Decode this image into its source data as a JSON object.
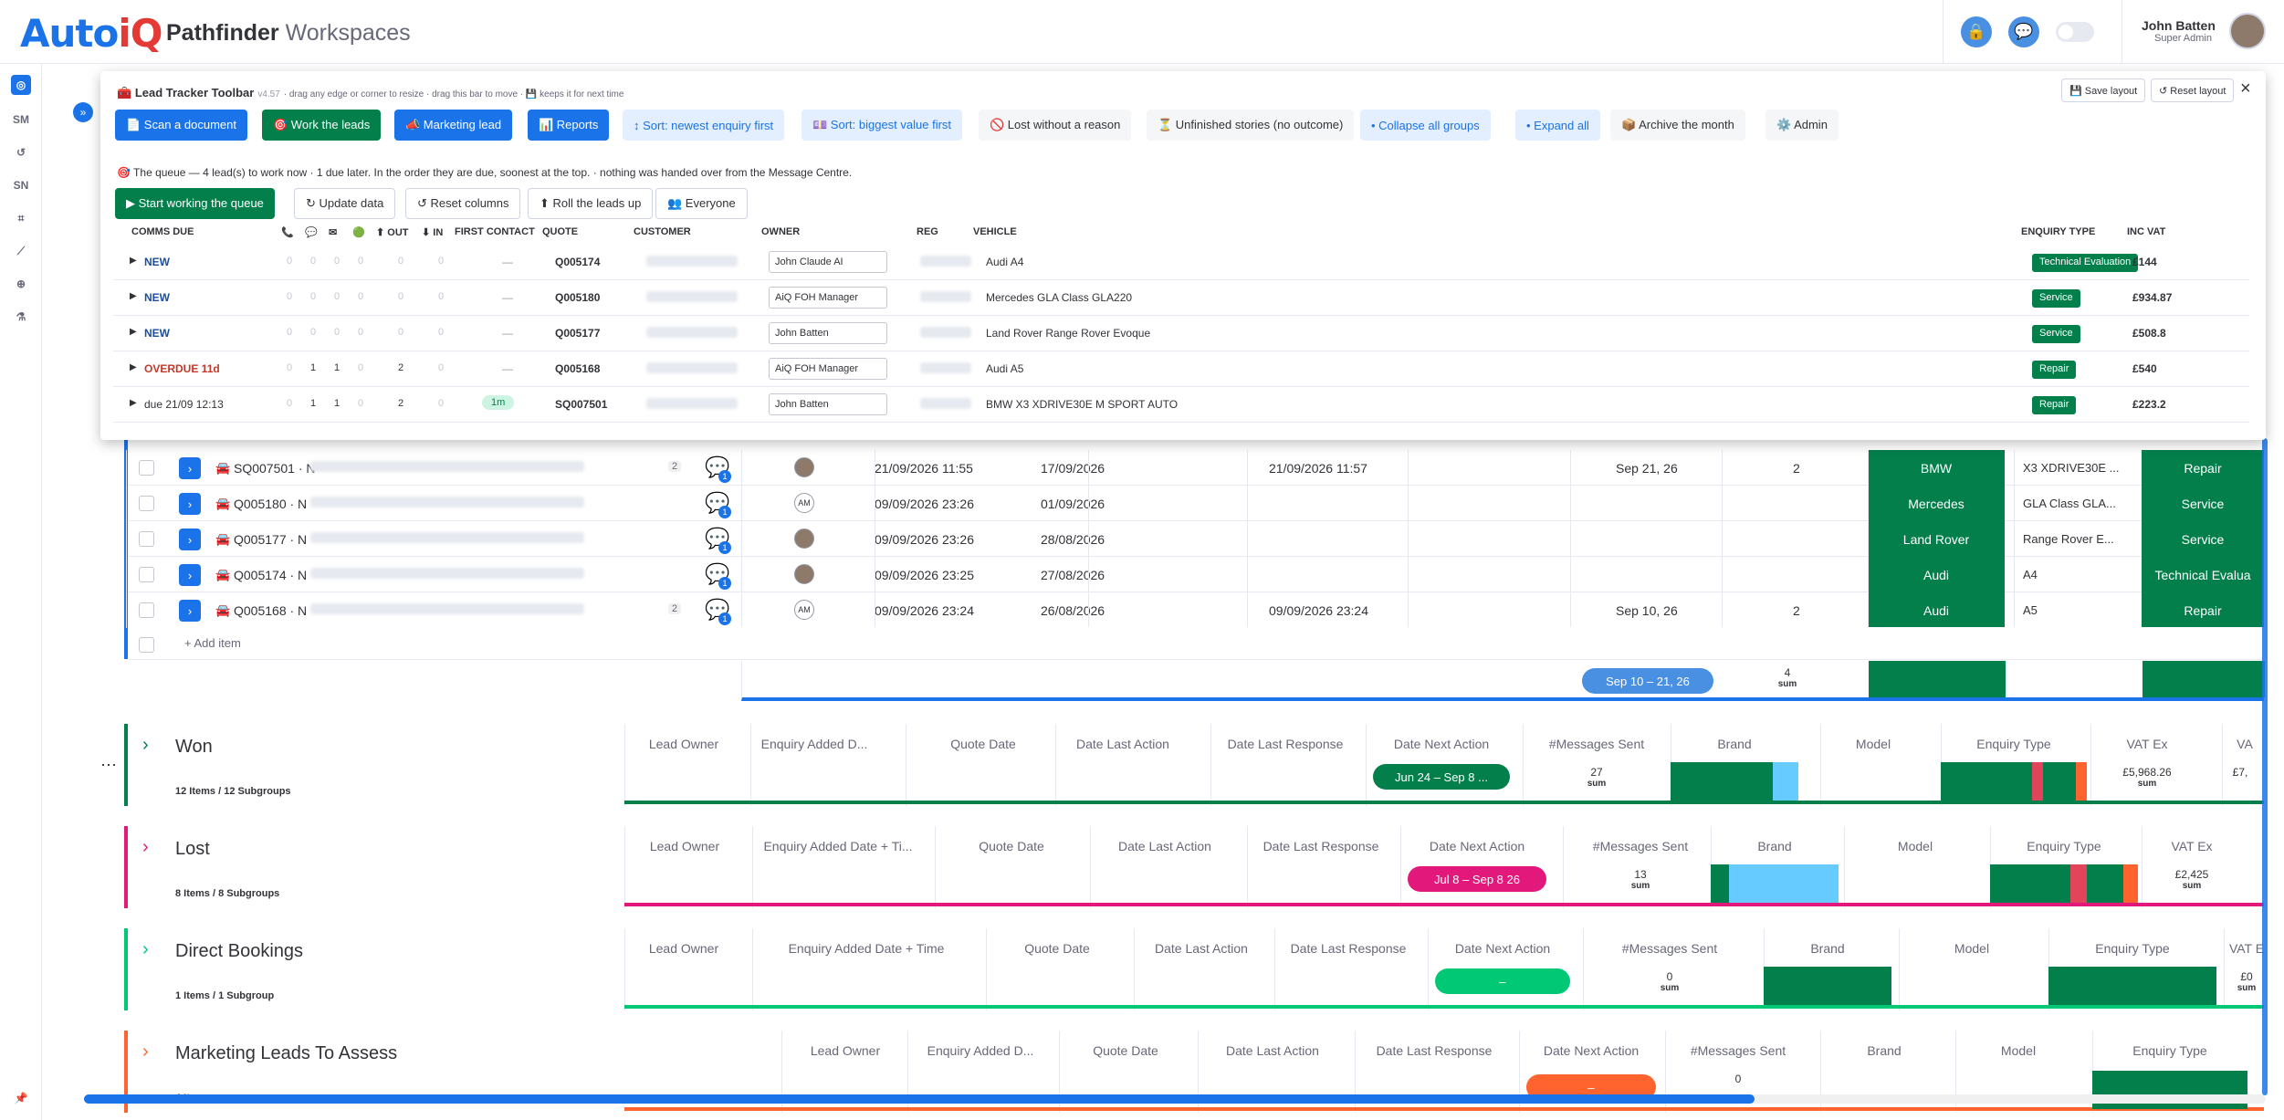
{
  "app": {
    "logo_main": "Auto",
    "logo_accent": "iQ",
    "title_main": "Pathfinder",
    "title_sub": "Workspaces"
  },
  "user": {
    "name": "John Batten",
    "role": "Super Admin"
  },
  "toolbar": {
    "title": "Lead Tracker Toolbar",
    "version": "v4.57",
    "hint": "· drag any edge or corner to resize · drag this bar to move · 💾 keeps it for next time",
    "save_layout": "💾 Save layout",
    "reset_layout": "↺ Reset layout",
    "close": "×",
    "buttons": [
      "📄 Scan a document",
      "🎯 Work the leads",
      "📣 Marketing lead",
      "📊 Reports",
      "↕ Sort: newest enquiry first",
      "💷 Sort: biggest value first",
      "🚫 Lost without a reason",
      "⏳ Unfinished stories (no outcome)",
      "• Collapse all groups",
      "• Expand all",
      "📦 Archive the month",
      "⚙️ Admin"
    ],
    "queue_text": "🎯 The queue — 4 lead(s) to work now · 1 due later. In the order they are due, soonest at the top. · nothing was handed over from the Message Centre.",
    "actions": [
      "▶ Start working the queue",
      "↻ Update data",
      "↺ Reset columns",
      "⬆ Roll the leads up",
      "👥 Everyone"
    ]
  },
  "queue": {
    "headers": {
      "comms_due": "COMMS DUE",
      "out": "⬆ OUT",
      "in": "⬇ IN",
      "first_contact": "FIRST CONTACT",
      "quote": "QUOTE",
      "customer": "CUSTOMER",
      "owner": "OWNER",
      "reg": "REG",
      "vehicle": "VEHICLE",
      "enquiry_type": "ENQUIRY TYPE",
      "inc_vat": "INC VAT"
    },
    "header_icons": [
      "📞",
      "💬",
      "✉",
      "🟢"
    ],
    "rows": [
      {
        "due": "NEW",
        "kind": "new",
        "c": [
          "0",
          "0",
          "0",
          "0"
        ],
        "out": "0",
        "in": "0",
        "fc": "—",
        "quote": "Q005174",
        "owner": "John Claude AI",
        "vehicle": "Audi A4",
        "etype": "Technical Evaluation",
        "vat": "£144"
      },
      {
        "due": "NEW",
        "kind": "new",
        "c": [
          "0",
          "0",
          "0",
          "0"
        ],
        "out": "0",
        "in": "0",
        "fc": "—",
        "quote": "Q005180",
        "owner": "AiQ FOH Manager",
        "vehicle": "Mercedes GLA Class GLA220",
        "etype": "Service",
        "vat": "£934.87"
      },
      {
        "due": "NEW",
        "kind": "new",
        "c": [
          "0",
          "0",
          "0",
          "0"
        ],
        "out": "0",
        "in": "0",
        "fc": "—",
        "quote": "Q005177",
        "owner": "John Batten",
        "vehicle": "Land Rover Range Rover Evoque",
        "etype": "Service",
        "vat": "£508.8"
      },
      {
        "due": "OVERDUE 11d",
        "kind": "overdue",
        "c": [
          "0",
          "1",
          "1",
          "0"
        ],
        "out": "2",
        "in": "0",
        "fc": "—",
        "quote": "Q005168",
        "owner": "AiQ FOH Manager",
        "vehicle": "Audi A5",
        "etype": "Repair",
        "vat": "£540"
      },
      {
        "due": "due 21/09 12:13",
        "kind": "due",
        "c": [
          "0",
          "1",
          "1",
          "0"
        ],
        "out": "2",
        "in": "0",
        "fc": "1m",
        "quote": "SQ007501",
        "owner": "John Batten",
        "vehicle": "BMW X3 XDRIVE30E M SPORT AUTO",
        "etype": "Repair",
        "vat": "£223.2"
      }
    ]
  },
  "board_rows": [
    {
      "id": "SQ007501 · N",
      "count": "2",
      "avatar": "",
      "added": "21/09/2026 11:55",
      "quote_date": "17/09/2026",
      "last_action": "21/09/2026 11:57",
      "next_action": "Sep 21, 26",
      "msgs": "2",
      "brand": "BMW",
      "model": "X3 XDRIVE30E ...",
      "etype": "Repair"
    },
    {
      "id": "Q005180 · N",
      "count": "",
      "avatar": "AM",
      "added": "09/09/2026 23:26",
      "quote_date": "01/09/2026",
      "last_action": "",
      "next_action": "",
      "msgs": "",
      "brand": "Mercedes",
      "model": "GLA Class GLA...",
      "etype": "Service"
    },
    {
      "id": "Q005177 · N",
      "count": "",
      "avatar": "",
      "added": "09/09/2026 23:26",
      "quote_date": "28/08/2026",
      "last_action": "",
      "next_action": "",
      "msgs": "",
      "brand": "Land Rover",
      "model": "Range Rover E...",
      "etype": "Service"
    },
    {
      "id": "Q005174 · N",
      "count": "",
      "avatar": "",
      "added": "09/09/2026 23:25",
      "quote_date": "27/08/2026",
      "last_action": "",
      "next_action": "",
      "msgs": "",
      "brand": "Audi",
      "model": "A4",
      "etype": "Technical Evalua"
    },
    {
      "id": "Q005168 · N",
      "count": "2",
      "avatar": "AM",
      "added": "09/09/2026 23:24",
      "quote_date": "26/08/2026",
      "last_action": "09/09/2026 23:24",
      "next_action": "Sep 10, 26",
      "msgs": "2",
      "brand": "Audi",
      "model": "A5",
      "etype": "Repair"
    }
  ],
  "add_item": "+ Add item",
  "summary": {
    "next_action": "Sep 10 – 21, 26",
    "msgs": "4",
    "sum": "sum"
  },
  "groups": [
    {
      "title": "Won",
      "sub": "12 Items / 12 Subgroups",
      "color": "#037f4c",
      "cols": [
        "Lead Owner",
        "Enquiry Added D...",
        "Quote Date",
        "Date Last Action",
        "Date Last Response",
        "Date Next Action",
        "#Messages Sent",
        "Brand",
        "Model",
        "Enquiry Type",
        "VAT Ex",
        "VA"
      ],
      "pill": "Jun 24 – Sep 8 ...",
      "msgs": "27",
      "vat": "£5,968.26",
      "vat2": "£7,",
      "sum": "sum"
    },
    {
      "title": "Lost",
      "sub": "8 Items / 8 Subgroups",
      "color": "#e2187b",
      "cols": [
        "Lead Owner",
        "Enquiry Added Date + Ti...",
        "Quote Date",
        "Date Last Action",
        "Date Last Response",
        "Date Next Action",
        "#Messages Sent",
        "Brand",
        "Model",
        "Enquiry Type",
        "VAT Ex"
      ],
      "pill": "Jul 8 – Sep 8 26",
      "msgs": "13",
      "vat": "£2,425",
      "sum": "sum"
    },
    {
      "title": "Direct Bookings",
      "sub": "1 Items / 1 Subgroup",
      "color": "#00c875",
      "cols": [
        "Lead Owner",
        "Enquiry Added Date + Time",
        "Quote Date",
        "Date Last Action",
        "Date Last Response",
        "Date Next Action",
        "#Messages Sent",
        "Brand",
        "Model",
        "Enquiry Type",
        "VAT E"
      ],
      "pill": "–",
      "msgs": "0",
      "vat": "£0",
      "sum": "sum"
    },
    {
      "title": "Marketing Leads To Assess",
      "sub": "4 Items",
      "color": "#ff642e",
      "cols": [
        "Lead Owner",
        "Enquiry Added D...",
        "Quote Date",
        "Date Last Action",
        "Date Last Response",
        "Date Next Action",
        "#Messages Sent",
        "Brand",
        "Model",
        "Enquiry Type"
      ],
      "pill": "–",
      "msgs": "0"
    }
  ],
  "colors": {
    "primary": "#1a73e8",
    "green": "#037f4c",
    "pink": "#e2187b",
    "light_green": "#00c875",
    "orange": "#ff642e",
    "sky": "#66ccff",
    "red": "#e2445c"
  }
}
